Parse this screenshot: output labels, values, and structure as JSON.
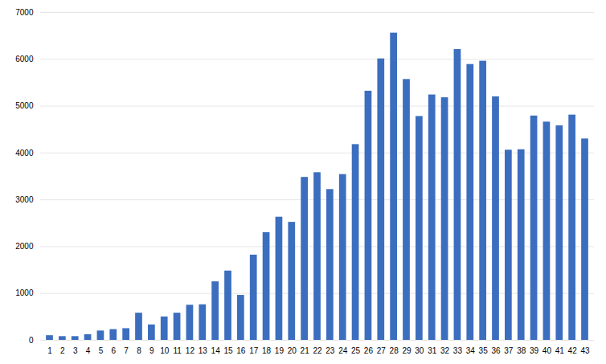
{
  "chart_data": {
    "type": "bar",
    "categories": [
      1,
      2,
      3,
      4,
      5,
      6,
      7,
      8,
      9,
      10,
      11,
      12,
      13,
      14,
      15,
      16,
      17,
      18,
      19,
      20,
      21,
      22,
      23,
      24,
      25,
      26,
      27,
      28,
      29,
      30,
      31,
      32,
      33,
      34,
      35,
      36,
      37,
      38,
      39,
      40,
      41,
      42,
      43
    ],
    "values": [
      100,
      80,
      80,
      120,
      200,
      230,
      250,
      580,
      330,
      500,
      580,
      750,
      760,
      1250,
      1480,
      960,
      1820,
      2300,
      2630,
      2520,
      3480,
      3580,
      3220,
      3540,
      4180,
      5320,
      6010,
      6560,
      5570,
      4780,
      5240,
      5180,
      6210,
      5890,
      5960,
      5200,
      4060,
      4070,
      4790,
      4660,
      4580,
      4810,
      4300
    ],
    "color": "#3C6EBF",
    "ylim": [
      0,
      7000
    ],
    "yticks": [
      0,
      1000,
      2000,
      3000,
      4000,
      5000,
      6000,
      7000
    ],
    "grid": true
  }
}
